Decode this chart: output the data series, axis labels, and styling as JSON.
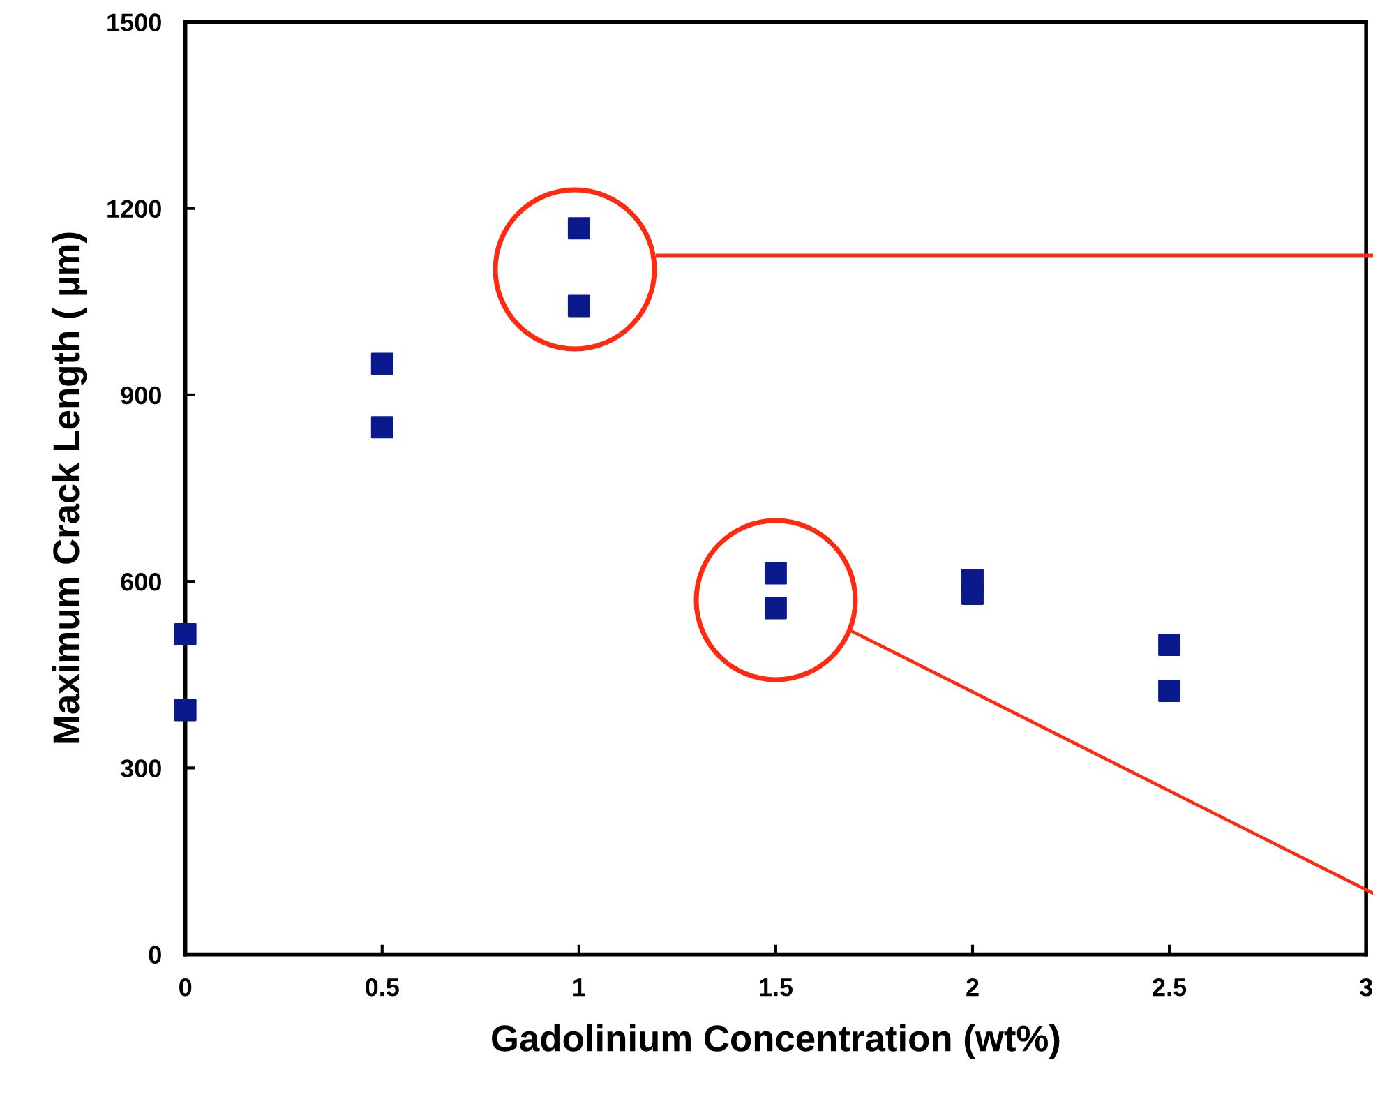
{
  "chart_data": {
    "type": "scatter",
    "xlabel": "Gadolinium Concentration (wt%)",
    "ylabel": "Maximum Crack Length ( µm)",
    "x": [
      0,
      0,
      0.5,
      0.5,
      1,
      1,
      1.5,
      1.5,
      2,
      2,
      2.5,
      2.5
    ],
    "series": [
      {
        "color": "#0a1a8c",
        "values": [
          515,
          393,
          950,
          848,
          1168,
          1043,
          613,
          557,
          602,
          580,
          498,
          424
        ]
      }
    ],
    "marker": "square",
    "grid": false,
    "xlim": [
      0,
      3
    ],
    "xticks": [
      0,
      0.5,
      1,
      1.5,
      2,
      2.5,
      3
    ],
    "ylim": [
      0,
      1500
    ],
    "yticks": [
      0,
      300,
      600,
      900,
      1200,
      1500
    ]
  }
}
